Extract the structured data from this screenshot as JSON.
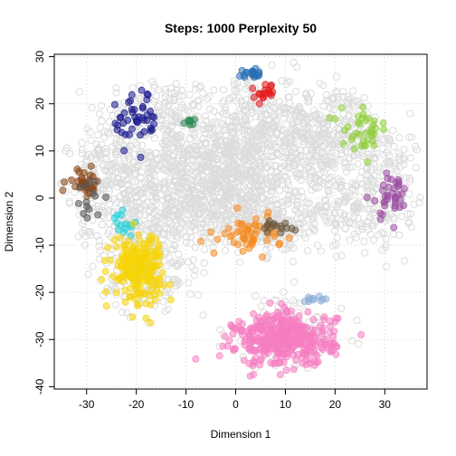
{
  "chart_data": {
    "type": "scatter",
    "title": "Steps: 1000 Perplexity 50",
    "xlabel": "Dimension 1",
    "ylabel": "Dimension 2",
    "xlim": [
      -36.5,
      38.5
    ],
    "ylim": [
      -40.5,
      30.5
    ],
    "xticks": [
      -30,
      -20,
      -10,
      0,
      10,
      20,
      30
    ],
    "yticks": [
      -40,
      -30,
      -20,
      -10,
      0,
      10,
      20,
      30
    ],
    "grid": true,
    "background_color": "#dcdcdc",
    "series": [
      {
        "color": "#2b6fb5",
        "center": [
          3.5,
          26.3
        ],
        "spread": [
          1.3,
          0.4
        ],
        "count": 22
      },
      {
        "color": "#e31a1c",
        "center": [
          5.8,
          22.3
        ],
        "spread": [
          0.9,
          1.0
        ],
        "count": 18
      },
      {
        "color": "#1a1a8e",
        "center": [
          -20.0,
          16.5
        ],
        "spread": [
          2.4,
          3.0
        ],
        "count": 45
      },
      {
        "color": "#2e8b57",
        "center": [
          -9.0,
          16.0
        ],
        "spread": [
          0.7,
          0.6
        ],
        "count": 8
      },
      {
        "color": "#8fce3a",
        "center": [
          26.0,
          14.5
        ],
        "spread": [
          2.4,
          2.0
        ],
        "count": 38
      },
      {
        "color": "#8b4513",
        "center": [
          -30.5,
          3.2
        ],
        "spread": [
          1.6,
          1.4
        ],
        "count": 30
      },
      {
        "color": "#555555",
        "center": [
          -29.5,
          0.0
        ],
        "spread": [
          2.6,
          2.4
        ],
        "count": 14
      },
      {
        "color": "#9c4ea3",
        "center": [
          31.0,
          0.5
        ],
        "spread": [
          2.0,
          2.6
        ],
        "count": 38
      },
      {
        "color": "#1fd0d8",
        "center": [
          -22.5,
          -6.2
        ],
        "spread": [
          1.0,
          1.3
        ],
        "count": 14
      },
      {
        "color": "#f58a1f",
        "center": [
          3.0,
          -7.5
        ],
        "spread": [
          3.0,
          1.8
        ],
        "count": 55
      },
      {
        "color": "#6b5a3e",
        "center": [
          8.5,
          -6.5
        ],
        "spread": [
          1.5,
          0.9
        ],
        "count": 16
      },
      {
        "color": "#f5d40a",
        "center": [
          -19.8,
          -14.5
        ],
        "spread": [
          2.6,
          3.4
        ],
        "count": 210
      },
      {
        "color": "#8eaed6",
        "center": [
          15.8,
          -21.5
        ],
        "spread": [
          0.9,
          0.5
        ],
        "count": 10
      },
      {
        "color": "#f57dc1",
        "center": [
          10.0,
          -30.0
        ],
        "spread": [
          5.0,
          2.8
        ],
        "count": 380
      }
    ]
  }
}
